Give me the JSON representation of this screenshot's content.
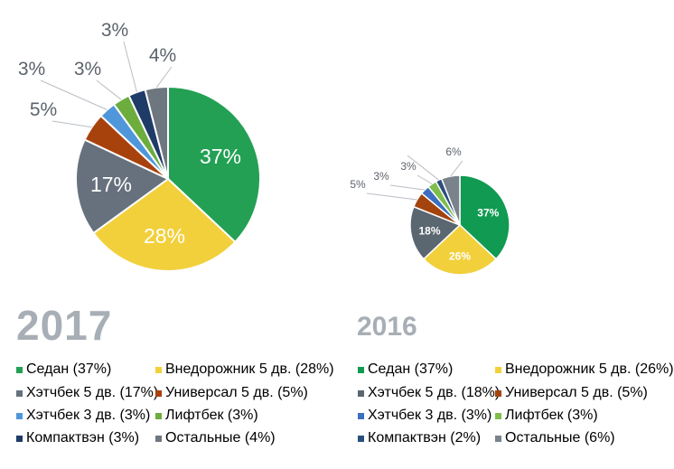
{
  "chart_data": [
    {
      "type": "pie",
      "title": "2017",
      "categories": [
        "Седан",
        "Внедорожник 5 дв.",
        "Хэтчбек 5 дв.",
        "Универсал 5 дв.",
        "Хэтчбек 3 дв.",
        "Лифтбек",
        "Компактвэн",
        "Остальные"
      ],
      "values": [
        37,
        28,
        17,
        5,
        3,
        3,
        3,
        4
      ],
      "slice_labels": [
        "37%",
        "28%",
        "17%",
        "5%",
        "3%",
        "3%",
        "3%",
        "4%"
      ],
      "legend_labels": [
        "Седан (37%)",
        "Внедорожник 5 дв. (28%)",
        "Хэтчбек 5 дв. (17%)",
        "Универсал 5 дв. (5%)",
        "Хэтчбек 3 дв. (3%)",
        "Лифтбек (3%)",
        "Компактвэн (3%)",
        "Остальные (4%)"
      ],
      "colors": [
        "#23a054",
        "#f2d03b",
        "#66717d",
        "#a8420c",
        "#4f97da",
        "#6cad3e",
        "#1f3b67",
        "#6e7780"
      ]
    },
    {
      "type": "pie",
      "title": "2016",
      "categories": [
        "Седан",
        "Внедорожник 5 дв.",
        "Хэтчбек 5 дв.",
        "Универсал 5 дв.",
        "Хэтчбек 3 дв.",
        "Лифтбек",
        "Компактвэн",
        "Остальные"
      ],
      "values": [
        37,
        26,
        18,
        5,
        3,
        3,
        2,
        6
      ],
      "slice_labels": [
        "37%",
        "26%",
        "18%",
        "5%",
        "3%",
        "3%",
        "",
        "6%"
      ],
      "legend_labels": [
        "Седан (37%)",
        "Внедорожник 5 дв. (26%)",
        "Хэтчбек 5 дв. (18%)",
        "Универсал 5 дв. (5%)",
        "Хэтчбек 3 дв. (3%)",
        "Лифтбек (3%)",
        "Компактвэн (2%)",
        "Остальные  (6%)"
      ],
      "colors": [
        "#109a52",
        "#f2d03b",
        "#5a6670",
        "#a3440e",
        "#3b6fbf",
        "#7fbd4c",
        "#2a4f7d",
        "#7a838c"
      ]
    }
  ]
}
